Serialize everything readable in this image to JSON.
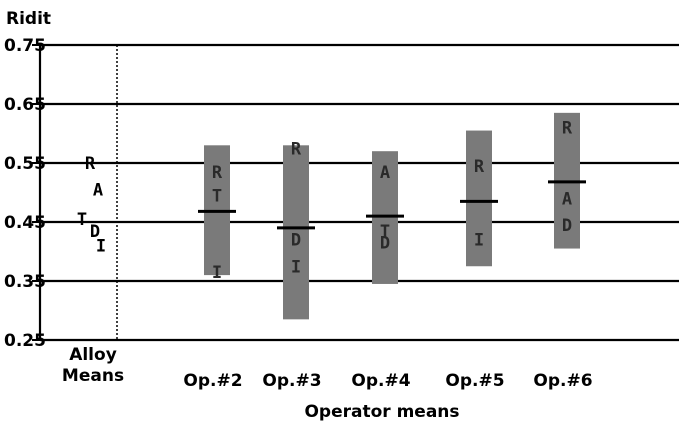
{
  "chart_data": {
    "type": "bar",
    "ylabel": "Ridit",
    "xlabel": "Operator means",
    "ylim": [
      0.25,
      0.75
    ],
    "yticks": [
      0.75,
      0.65,
      0.55,
      0.45,
      0.35,
      0.25
    ],
    "ytick_labels": [
      "0.75",
      "0.65",
      "0.55",
      "0.45",
      "0.35",
      "0.25"
    ],
    "grid": true,
    "alloy_group": {
      "label_line1": "Alloy",
      "label_line2": "Means",
      "letters": [
        {
          "letter": "R",
          "value": 0.55
        },
        {
          "letter": "A",
          "value": 0.505
        },
        {
          "letter": "T",
          "value": 0.455
        },
        {
          "letter": "D",
          "value": 0.435
        },
        {
          "letter": "I",
          "value": 0.41
        }
      ]
    },
    "operators": [
      {
        "label": "Op.#2",
        "low": 0.36,
        "high": 0.58,
        "mean": 0.468,
        "letters": [
          {
            "letter": "R",
            "value": 0.535
          },
          {
            "letter": "T",
            "value": 0.495
          },
          {
            "letter": "I",
            "value": 0.365
          }
        ]
      },
      {
        "label": "Op.#3",
        "low": 0.285,
        "high": 0.58,
        "mean": 0.44,
        "letters": [
          {
            "letter": "R",
            "value": 0.575
          },
          {
            "letter": "D",
            "value": 0.42
          },
          {
            "letter": "I",
            "value": 0.375
          }
        ]
      },
      {
        "label": "Op.#4",
        "low": 0.345,
        "high": 0.57,
        "mean": 0.46,
        "letters": [
          {
            "letter": "A",
            "value": 0.535
          },
          {
            "letter": "T",
            "value": 0.435
          },
          {
            "letter": "D",
            "value": 0.415
          }
        ]
      },
      {
        "label": "Op.#5",
        "low": 0.375,
        "high": 0.605,
        "mean": 0.485,
        "letters": [
          {
            "letter": "R",
            "value": 0.545
          },
          {
            "letter": "I",
            "value": 0.42
          }
        ]
      },
      {
        "label": "Op.#6",
        "low": 0.405,
        "high": 0.635,
        "mean": 0.518,
        "letters": [
          {
            "letter": "R",
            "value": 0.61
          },
          {
            "letter": "A",
            "value": 0.49
          },
          {
            "letter": "D",
            "value": 0.445
          }
        ]
      }
    ],
    "colors": {
      "bar": "#7a7a7a",
      "line": "#000000"
    }
  }
}
